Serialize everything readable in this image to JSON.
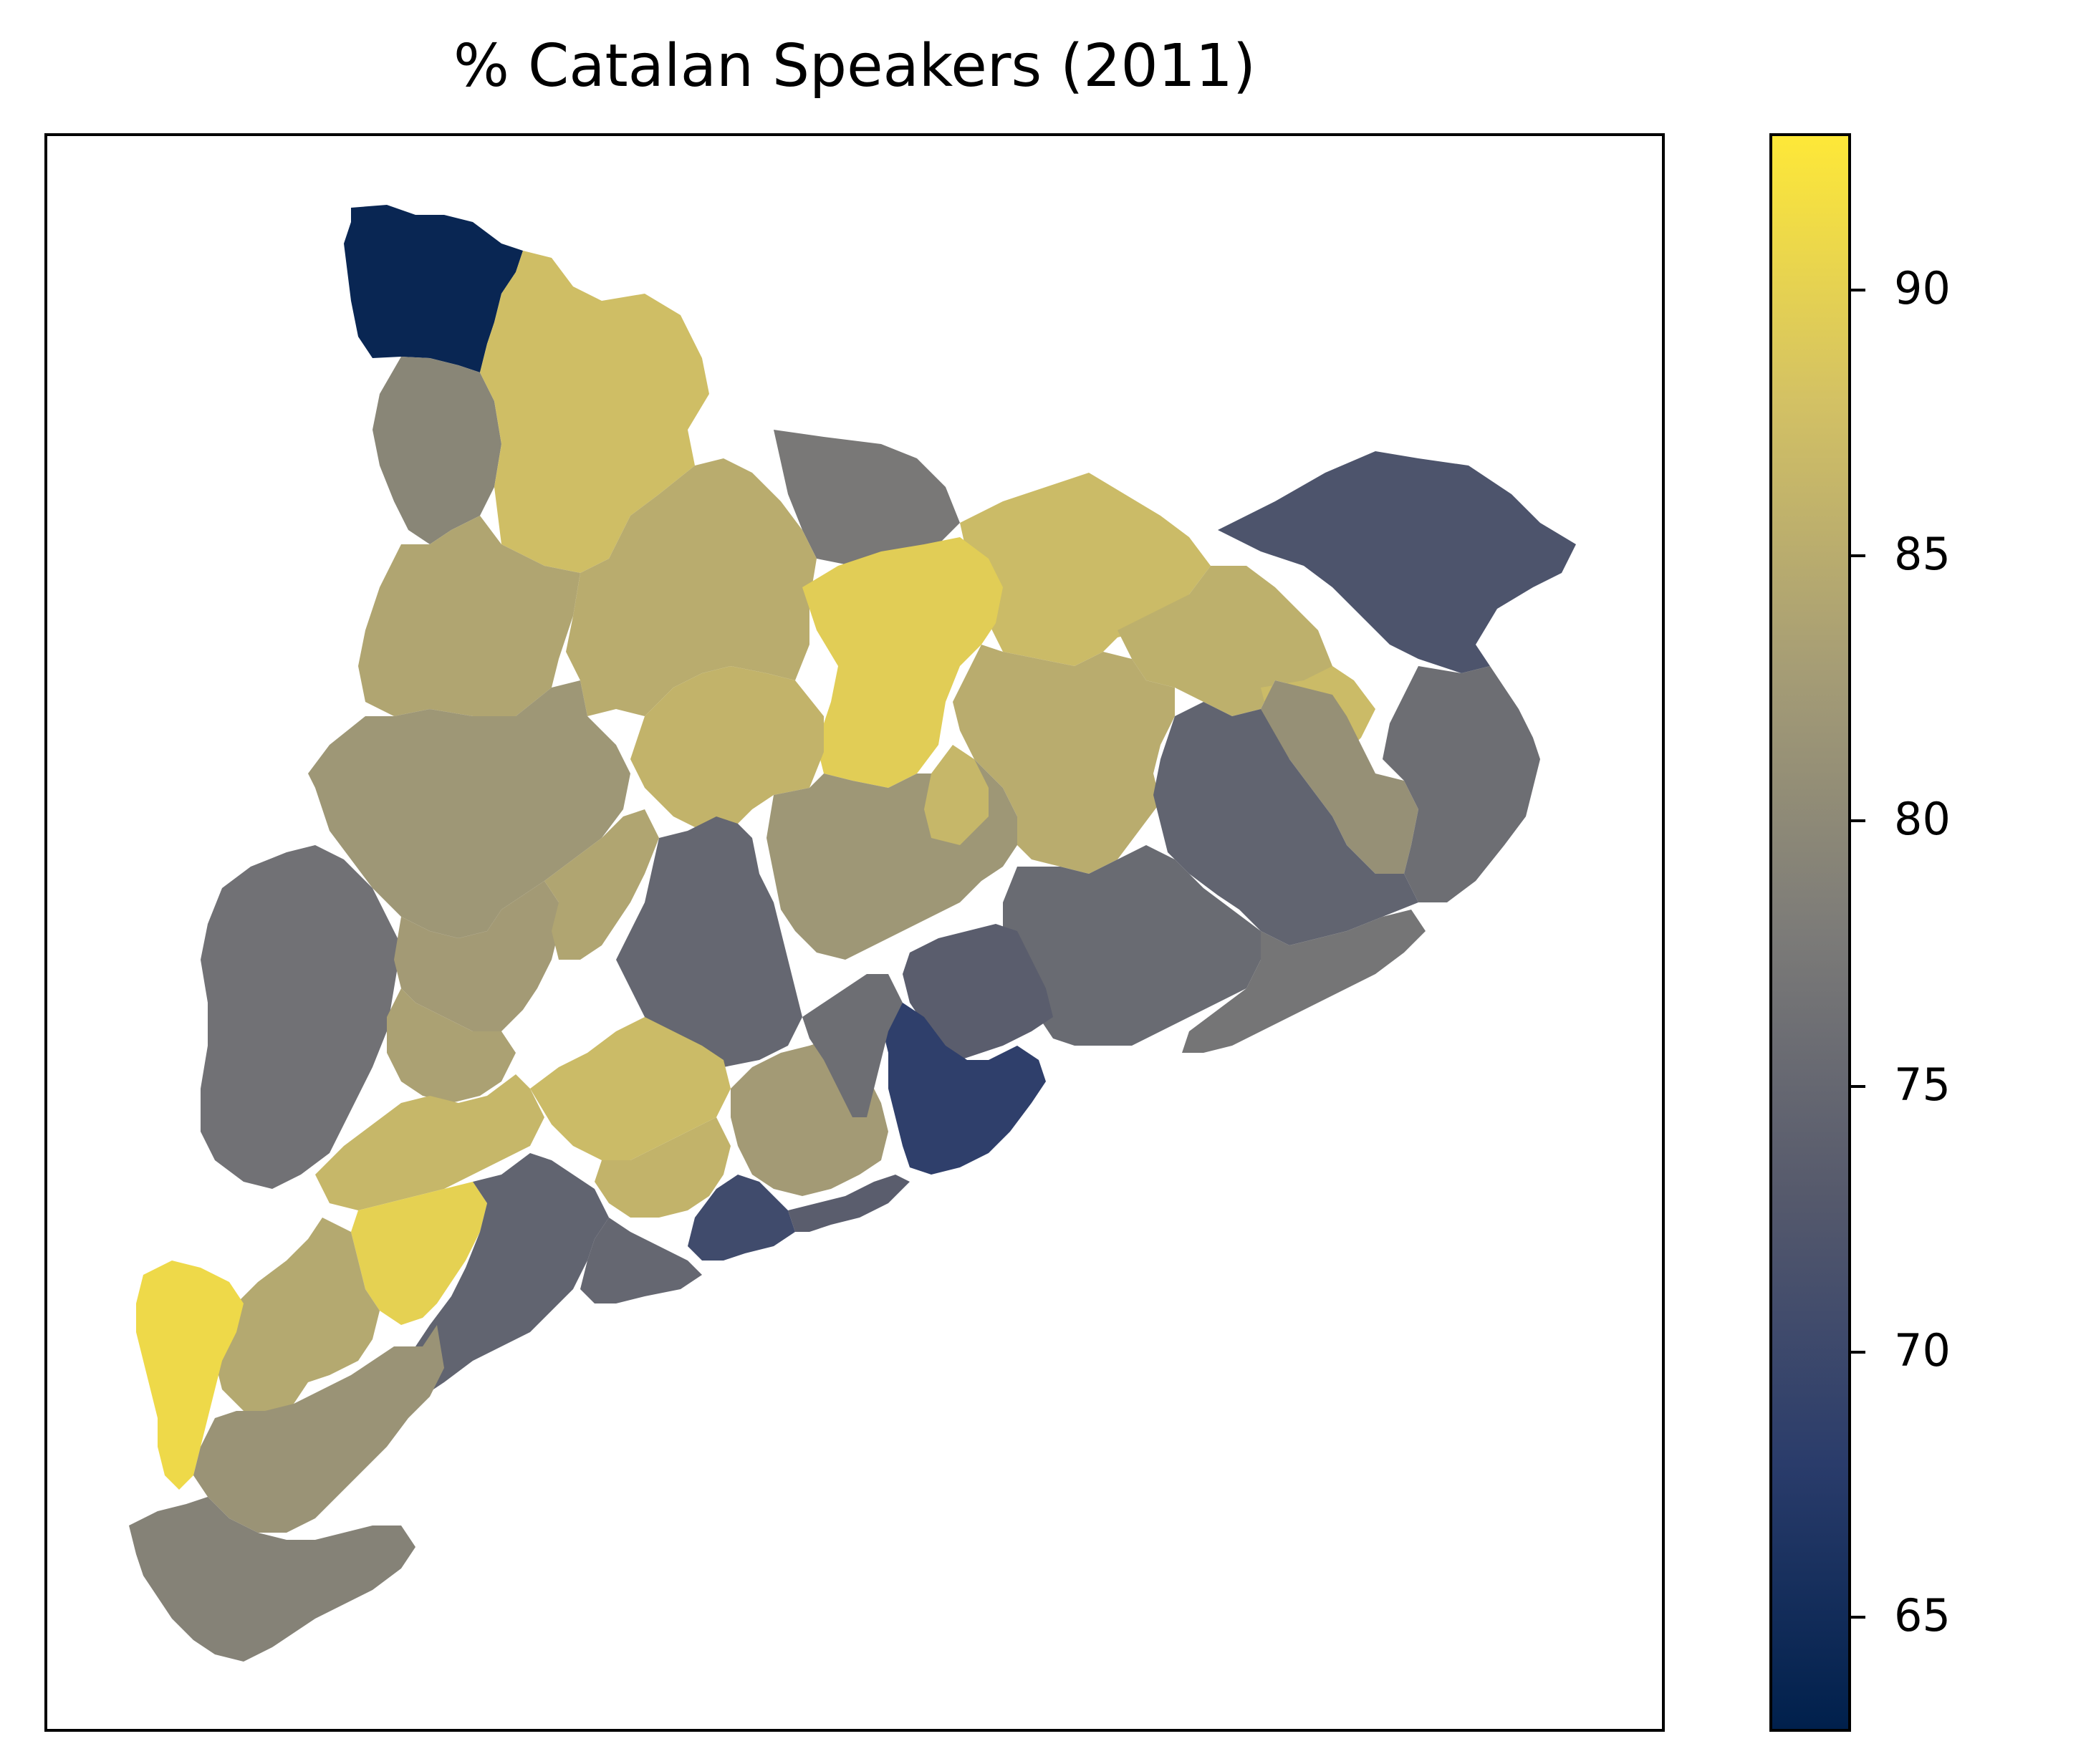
{
  "title": "% Catalan Speakers (2011)",
  "colormap": {
    "name": "cividis",
    "vmin": 62.9,
    "vmax": 92.9,
    "stops": [
      "#00204c",
      "#2a3c6b",
      "#55596c",
      "#7c7b78",
      "#a69d75",
      "#d3c164",
      "#fee838"
    ]
  },
  "colorbar": {
    "ticks": [
      {
        "value": 65,
        "label": "65"
      },
      {
        "value": 70,
        "label": "70"
      },
      {
        "value": 75,
        "label": "75"
      },
      {
        "value": 80,
        "label": "80"
      },
      {
        "value": 85,
        "label": "85"
      },
      {
        "value": 90,
        "label": "90"
      }
    ]
  },
  "regions": [
    {
      "id": "aran",
      "value": 64.0
    },
    {
      "id": "alta-ribagorca",
      "value": 79.5
    },
    {
      "id": "pallars-sobira",
      "value": 87.5
    },
    {
      "id": "cerdanya",
      "value": 77.5
    },
    {
      "id": "ripolles",
      "value": 87.0
    },
    {
      "id": "alt-emporda",
      "value": 72.0
    },
    {
      "id": "pallars-jussa",
      "value": 84.0
    },
    {
      "id": "alt-urgell",
      "value": 85.0
    },
    {
      "id": "bergueda",
      "value": 89.5
    },
    {
      "id": "garrotxa",
      "value": 85.5
    },
    {
      "id": "pla-estany",
      "value": 87.0
    },
    {
      "id": "noguera",
      "value": 82.0
    },
    {
      "id": "solsones",
      "value": 86.0
    },
    {
      "id": "osona",
      "value": 85.0
    },
    {
      "id": "girones",
      "value": 81.0
    },
    {
      "id": "baix-emporda",
      "value": 76.0
    },
    {
      "id": "selva",
      "value": 74.5
    },
    {
      "id": "segria",
      "value": 76.5
    },
    {
      "id": "urgell",
      "value": 82.5
    },
    {
      "id": "segarra",
      "value": 84.0
    },
    {
      "id": "bages",
      "value": 82.0
    },
    {
      "id": "anoia",
      "value": 75.0
    },
    {
      "id": "moianes",
      "value": 86.5
    },
    {
      "id": "valles-oriental",
      "value": 75.5
    },
    {
      "id": "maresme",
      "value": 77.0
    },
    {
      "id": "pla-urgell",
      "value": 83.5
    },
    {
      "id": "garrigues",
      "value": 86.5
    },
    {
      "id": "conca-barbera",
      "value": 87.0
    },
    {
      "id": "valles-occidental",
      "value": 73.5
    },
    {
      "id": "barcelones",
      "value": 68.5
    },
    {
      "id": "alt-penedes",
      "value": 82.5
    },
    {
      "id": "baix-llobregat",
      "value": 76.0
    },
    {
      "id": "priorat",
      "value": 90.0
    },
    {
      "id": "alt-camp",
      "value": 86.0
    },
    {
      "id": "baix-penedes",
      "value": 70.5
    },
    {
      "id": "garraf",
      "value": 73.5
    },
    {
      "id": "tarragones",
      "value": 75.0
    },
    {
      "id": "baix-camp",
      "value": 74.5
    },
    {
      "id": "ribera-ebre",
      "value": 84.5
    },
    {
      "id": "terra-alta",
      "value": 91.0
    },
    {
      "id": "baix-ebre",
      "value": 81.5
    },
    {
      "id": "montsia",
      "value": 79.0
    }
  ]
}
